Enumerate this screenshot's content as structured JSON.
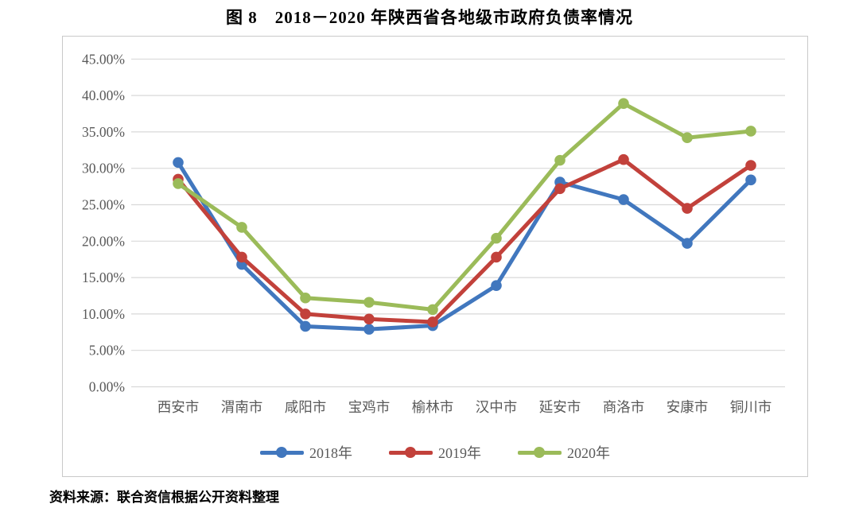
{
  "page": {
    "title": "图 8　2018－2020 年陕西省各地级市政府负债率情况",
    "source_note": "资料来源：联合资信根据公开资料整理"
  },
  "chart_data": {
    "type": "line",
    "title": "图 8　2018－2020 年陕西省各地级市政府负债率情况",
    "categories": [
      "西安市",
      "渭南市",
      "咸阳市",
      "宝鸡市",
      "榆林市",
      "汉中市",
      "延安市",
      "商洛市",
      "安康市",
      "铜川市"
    ],
    "series": [
      {
        "id": "2018",
        "name": "2018年",
        "color": "#4177be",
        "values": [
          30.8,
          16.8,
          8.3,
          7.9,
          8.4,
          13.9,
          28.1,
          25.7,
          19.7,
          28.4
        ]
      },
      {
        "id": "2019",
        "name": "2019年",
        "color": "#c2413b",
        "values": [
          28.5,
          17.8,
          10.0,
          9.3,
          8.9,
          17.8,
          27.2,
          31.2,
          24.5,
          30.4
        ]
      },
      {
        "id": "2020",
        "name": "2020年",
        "color": "#9bbb59",
        "values": [
          27.9,
          21.9,
          12.2,
          11.6,
          10.6,
          20.4,
          31.1,
          38.9,
          34.2,
          35.1
        ]
      }
    ],
    "xlabel": "",
    "ylabel": "",
    "ylim": [
      0,
      45
    ],
    "ytick_values": [
      0,
      5,
      10,
      15,
      20,
      25,
      30,
      35,
      40,
      45
    ],
    "ytick_labels": [
      "0.00%",
      "5.00%",
      "10.00%",
      "15.00%",
      "20.00%",
      "25.00%",
      "30.00%",
      "35.00%",
      "40.00%",
      "45.00%"
    ],
    "grid": true,
    "gridline_color": "#d9d9d9",
    "axis_label_color": "#595959",
    "legend_position": "bottom"
  }
}
